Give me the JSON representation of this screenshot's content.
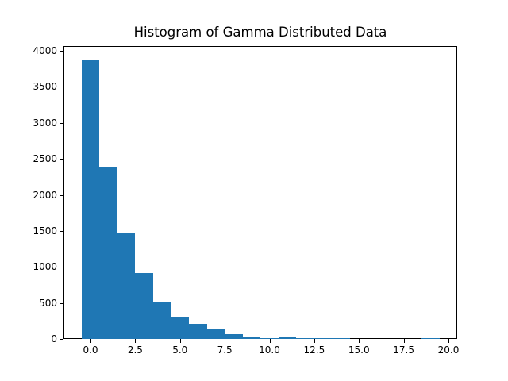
{
  "chart_data": {
    "type": "bar",
    "title": "Histogram of Gamma Distributed Data",
    "xlabel": "",
    "ylabel": "",
    "bin_width": 1.0,
    "bin_edges": [
      -0.5,
      0.5,
      1.5,
      2.5,
      3.5,
      4.5,
      5.5,
      6.5,
      7.5,
      8.5,
      9.5,
      10.5,
      11.5,
      12.5,
      13.5,
      14.5,
      15.5,
      16.5,
      17.5,
      18.5,
      19.5
    ],
    "categories": [
      "0",
      "1",
      "2",
      "3",
      "4",
      "5",
      "6",
      "7",
      "8",
      "9",
      "10",
      "11",
      "12",
      "13",
      "14",
      "15",
      "16",
      "17",
      "18",
      "19"
    ],
    "values": [
      3880,
      2380,
      1465,
      915,
      520,
      310,
      210,
      135,
      65,
      35,
      12,
      20,
      10,
      2,
      1,
      0,
      0,
      0,
      0,
      1
    ],
    "xlim": [
      -1.5,
      20.5
    ],
    "ylim": [
      0,
      4075
    ],
    "xticks": [
      "0.0",
      "2.5",
      "5.0",
      "7.5",
      "10.0",
      "12.5",
      "15.0",
      "17.5",
      "20.0"
    ],
    "xtick_values": [
      0.0,
      2.5,
      5.0,
      7.5,
      10.0,
      12.5,
      15.0,
      17.5,
      20.0
    ],
    "yticks": [
      "0",
      "500",
      "1000",
      "1500",
      "2000",
      "2500",
      "3000",
      "3500",
      "4000"
    ],
    "ytick_values": [
      0,
      500,
      1000,
      1500,
      2000,
      2500,
      3000,
      3500,
      4000
    ],
    "grid": false,
    "legend": null,
    "bar_color": "#1f77b4"
  }
}
